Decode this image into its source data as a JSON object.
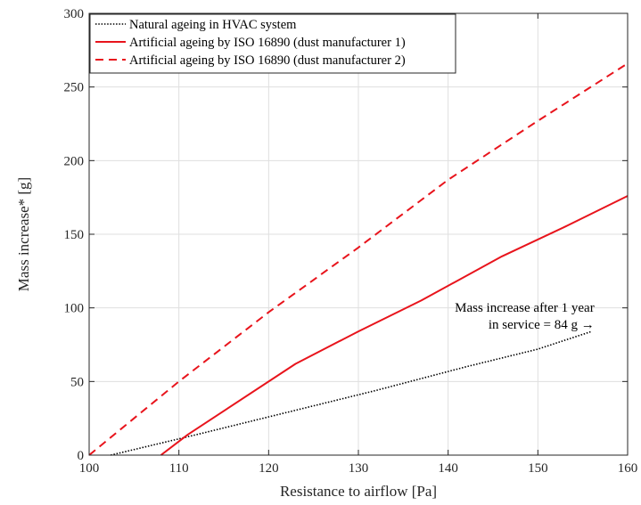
{
  "chart_data": {
    "type": "line",
    "title": "",
    "xlabel": "Resistance to airflow [Pa]",
    "ylabel": "Mass increase* [g]",
    "xlim": [
      100,
      160
    ],
    "ylim": [
      0,
      300
    ],
    "xticks": [
      100,
      110,
      120,
      130,
      140,
      150,
      160
    ],
    "yticks": [
      0,
      50,
      100,
      150,
      200,
      250,
      300
    ],
    "grid": true,
    "legend_position": "top-left",
    "series": [
      {
        "name": "Natural ageing in HVAC system",
        "style": "dotted",
        "color": "#000000",
        "points": [
          [
            102.4,
            0
          ],
          [
            112,
            14
          ],
          [
            122,
            29
          ],
          [
            132,
            44
          ],
          [
            142,
            60
          ],
          [
            150,
            72
          ],
          [
            156,
            84
          ]
        ]
      },
      {
        "name": "Artificial ageing by ISO 16890 (dust manufacturer 1)",
        "style": "solid",
        "color": "#e8141c",
        "points": [
          [
            108,
            0
          ],
          [
            111,
            14
          ],
          [
            115,
            30
          ],
          [
            123,
            62
          ],
          [
            130,
            84
          ],
          [
            137,
            105
          ],
          [
            146,
            135
          ],
          [
            153,
            155
          ],
          [
            160,
            176
          ]
        ]
      },
      {
        "name": "Artificial ageing by ISO 16890 (dust manufacturer 2)",
        "style": "dashed",
        "color": "#e8141c",
        "points": [
          [
            100,
            0
          ],
          [
            110,
            50
          ],
          [
            120,
            97
          ],
          [
            130,
            141
          ],
          [
            140,
            187
          ],
          [
            150,
            227
          ],
          [
            160,
            266
          ]
        ]
      }
    ],
    "annotations": {
      "line1": "Mass increase after 1 year",
      "line2": "in service = 84 g →",
      "x": 156,
      "y": 84
    }
  }
}
